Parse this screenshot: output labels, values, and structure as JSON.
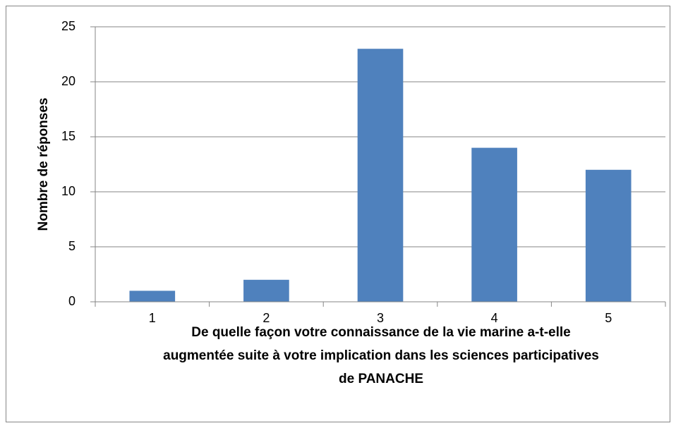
{
  "chart_data": {
    "type": "bar",
    "ylabel": "Nombre de réponses",
    "xlabel": [
      "De quelle façon votre connaissance de la vie marine a-t-elle",
      "augmentée suite à votre implication dans les sciences participatives",
      "de PANACHE"
    ],
    "categories": [
      "1",
      "2",
      "3",
      "4",
      "5"
    ],
    "values": [
      1,
      2,
      23,
      14,
      12
    ],
    "color": "#4f81bd",
    "ylim": [
      0,
      25
    ],
    "yticks": [
      0,
      5,
      10,
      15,
      20,
      25
    ],
    "grid": true
  }
}
